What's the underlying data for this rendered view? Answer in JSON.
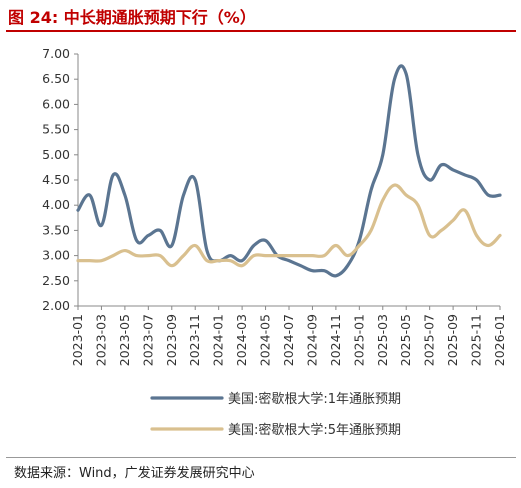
{
  "title": "图 24: 中长期通胀预期下行（%）",
  "source": "数据来源：Wind，广发证券发展研究中心",
  "chart_data": {
    "type": "line",
    "title": "",
    "xlabel": "",
    "ylabel": "",
    "ylim": [
      2.0,
      7.0
    ],
    "yticks": [
      "2.00",
      "2.50",
      "3.00",
      "3.50",
      "4.00",
      "4.50",
      "5.00",
      "5.50",
      "6.00",
      "6.50",
      "7.00"
    ],
    "xticks": [
      "2023-01",
      "2023-03",
      "2023-05",
      "2023-07",
      "2023-09",
      "2023-11",
      "2024-01",
      "2024-03",
      "2024-05",
      "2024-07",
      "2024-09",
      "2024-11",
      "2025-01",
      "2025-03",
      "2025-05",
      "2025-07",
      "2025-09",
      "2025-11",
      "2026-01"
    ],
    "legend_position": "bottom",
    "series": [
      {
        "name": "美国:密歇根大学:1年通胀预期",
        "color": "#5b7591",
        "x": [
          "2023-01",
          "2023-02",
          "2023-03",
          "2023-04",
          "2023-05",
          "2023-06",
          "2023-07",
          "2023-08",
          "2023-09",
          "2023-10",
          "2023-11",
          "2023-12",
          "2024-01",
          "2024-02",
          "2024-03",
          "2024-04",
          "2024-05",
          "2024-06",
          "2024-07",
          "2024-08",
          "2024-09",
          "2024-10",
          "2024-11",
          "2024-12",
          "2025-01",
          "2025-02",
          "2025-03",
          "2025-04",
          "2025-05",
          "2025-06",
          "2025-07",
          "2025-08",
          "2025-09",
          "2025-10",
          "2025-11",
          "2025-12",
          "2026-01"
        ],
        "values": [
          3.9,
          4.2,
          3.6,
          4.6,
          4.2,
          3.3,
          3.4,
          3.5,
          3.2,
          4.2,
          4.5,
          3.1,
          2.9,
          3.0,
          2.9,
          3.2,
          3.3,
          3.0,
          2.9,
          2.8,
          2.7,
          2.7,
          2.6,
          2.8,
          3.3,
          4.3,
          5.0,
          6.5,
          6.6,
          5.0,
          4.5,
          4.8,
          4.7,
          4.6,
          4.5,
          4.2,
          4.2
        ]
      },
      {
        "name": "美国:密歇根大学:5年通胀预期",
        "color": "#d9c08f",
        "x": [
          "2023-01",
          "2023-02",
          "2023-03",
          "2023-04",
          "2023-05",
          "2023-06",
          "2023-07",
          "2023-08",
          "2023-09",
          "2023-10",
          "2023-11",
          "2023-12",
          "2024-01",
          "2024-02",
          "2024-03",
          "2024-04",
          "2024-05",
          "2024-06",
          "2024-07",
          "2024-08",
          "2024-09",
          "2024-10",
          "2024-11",
          "2024-12",
          "2025-01",
          "2025-02",
          "2025-03",
          "2025-04",
          "2025-05",
          "2025-06",
          "2025-07",
          "2025-08",
          "2025-09",
          "2025-10",
          "2025-11",
          "2025-12",
          "2026-01"
        ],
        "values": [
          2.9,
          2.9,
          2.9,
          3.0,
          3.1,
          3.0,
          3.0,
          3.0,
          2.8,
          3.0,
          3.2,
          2.9,
          2.9,
          2.9,
          2.8,
          3.0,
          3.0,
          3.0,
          3.0,
          3.0,
          3.0,
          3.0,
          3.2,
          3.0,
          3.2,
          3.5,
          4.1,
          4.4,
          4.2,
          4.0,
          3.4,
          3.5,
          3.7,
          3.9,
          3.4,
          3.2,
          3.4
        ]
      }
    ]
  }
}
